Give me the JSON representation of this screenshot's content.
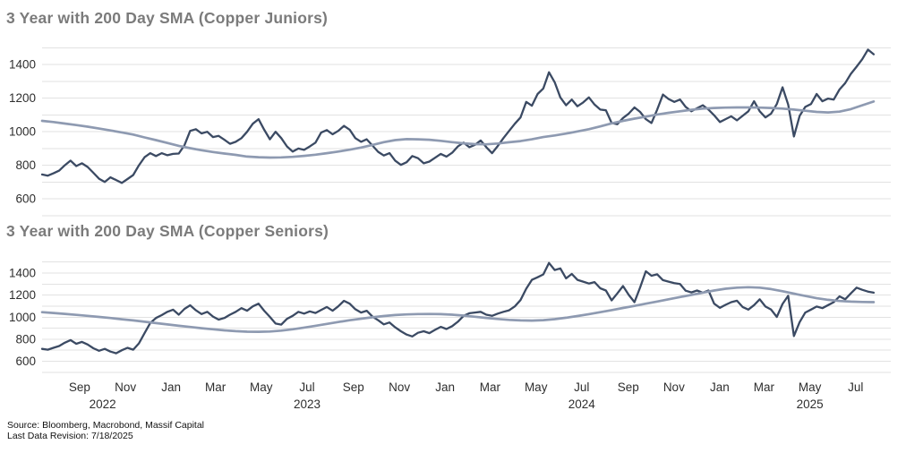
{
  "page": {
    "source_line1": "Source: Bloomberg, Macrobond, Massif Capital",
    "source_line2": "Last Data Revision: 7/18/2025"
  },
  "palette": {
    "title": "#7b7b7b",
    "axis_label": "#2e2e2e",
    "gridline": "#e2e2e2",
    "index_line": "#3b4a63",
    "sma_line": "#8e9ab1"
  },
  "x_axis": {
    "t_min": 0,
    "t_max": 37.15,
    "month_ticks": [
      {
        "label": "Sep",
        "t": 1.64
      },
      {
        "label": "Nov",
        "t": 3.65
      },
      {
        "label": "Jan",
        "t": 5.65
      },
      {
        "label": "Mar",
        "t": 7.59
      },
      {
        "label": "May",
        "t": 9.59
      },
      {
        "label": "Jul",
        "t": 11.6
      },
      {
        "label": "Sep",
        "t": 13.63
      },
      {
        "label": "Nov",
        "t": 15.64
      },
      {
        "label": "Jan",
        "t": 17.64
      },
      {
        "label": "Mar",
        "t": 19.61
      },
      {
        "label": "May",
        "t": 21.62
      },
      {
        "label": "Jul",
        "t": 23.62
      },
      {
        "label": "Sep",
        "t": 25.66
      },
      {
        "label": "Nov",
        "t": 27.66
      },
      {
        "label": "Jan",
        "t": 29.66
      },
      {
        "label": "Mar",
        "t": 31.6
      },
      {
        "label": "May",
        "t": 33.61
      },
      {
        "label": "Jul",
        "t": 35.61
      }
    ],
    "year_ticks": [
      {
        "label": "2022",
        "t": 2.65
      },
      {
        "label": "2023",
        "t": 11.6
      },
      {
        "label": "2024",
        "t": 23.62
      },
      {
        "label": "2025",
        "t": 33.61
      }
    ]
  },
  "chart_data": [
    {
      "type": "line",
      "title": "3 Year with 200 Day SMA (Copper Juniors)",
      "ylim": [
        500,
        1500
      ],
      "yticks": [
        600,
        800,
        1000,
        1200,
        1400
      ],
      "grid_step": 100,
      "x_range_note": "t = months since mid-July 2022; last data 7/18/2025",
      "series": [
        {
          "name": "copper-juniors-index",
          "color_key": "index_line",
          "t_start": 0,
          "t_end": 36.4,
          "values": [
            745,
            738,
            752,
            768,
            800,
            828,
            795,
            812,
            790,
            755,
            720,
            700,
            728,
            712,
            695,
            718,
            742,
            800,
            848,
            872,
            855,
            872,
            860,
            868,
            870,
            920,
            1005,
            1015,
            990,
            1000,
            968,
            975,
            952,
            928,
            940,
            962,
            1000,
            1048,
            1075,
            1012,
            955,
            1000,
            962,
            912,
            882,
            900,
            892,
            912,
            935,
            995,
            1010,
            985,
            1005,
            1035,
            1012,
            962,
            940,
            955,
            918,
            880,
            858,
            872,
            828,
            802,
            818,
            855,
            842,
            812,
            822,
            845,
            868,
            852,
            875,
            912,
            935,
            908,
            922,
            948,
            908,
            872,
            915,
            962,
            1005,
            1048,
            1085,
            1178,
            1155,
            1225,
            1258,
            1355,
            1295,
            1205,
            1158,
            1192,
            1152,
            1175,
            1205,
            1162,
            1132,
            1128,
            1052,
            1045,
            1082,
            1108,
            1145,
            1118,
            1075,
            1052,
            1132,
            1222,
            1195,
            1178,
            1192,
            1148,
            1122,
            1140,
            1158,
            1132,
            1098,
            1058,
            1075,
            1092,
            1068,
            1095,
            1122,
            1182,
            1122,
            1085,
            1108,
            1165,
            1265,
            1162,
            972,
            1095,
            1148,
            1165,
            1225,
            1182,
            1198,
            1192,
            1252,
            1290,
            1345,
            1388,
            1432,
            1490,
            1462
          ]
        },
        {
          "name": "copper-juniors-200d-sma",
          "color_key": "sma_line",
          "t_start": 0,
          "t_end": 36.4,
          "values": [
            1065,
            1058,
            1049,
            1040,
            1030,
            1019,
            1008,
            996,
            983,
            966,
            950,
            933,
            916,
            902,
            890,
            879,
            870,
            862,
            852,
            848,
            846,
            847,
            850,
            856,
            863,
            872,
            882,
            893,
            906,
            921,
            938,
            950,
            956,
            955,
            952,
            946,
            938,
            931,
            926,
            925,
            930,
            937,
            944,
            955,
            968,
            978,
            989,
            1002,
            1015,
            1032,
            1050,
            1065,
            1078,
            1090,
            1103,
            1113,
            1122,
            1131,
            1138,
            1142,
            1144,
            1145,
            1145,
            1144,
            1142,
            1138,
            1132,
            1125,
            1118,
            1115,
            1120,
            1135,
            1158,
            1180
          ]
        }
      ]
    },
    {
      "type": "line",
      "title": "3 Year with 200 Day SMA (Copper Seniors)",
      "ylim": [
        500,
        1500
      ],
      "yticks": [
        600,
        800,
        1000,
        1200,
        1400
      ],
      "grid_step": 100,
      "x_range_note": "t = months since mid-July 2022; last data 7/18/2025",
      "series": [
        {
          "name": "copper-seniors-index",
          "color_key": "index_line",
          "t_start": 0,
          "t_end": 36.4,
          "values": [
            712,
            705,
            722,
            738,
            768,
            792,
            758,
            775,
            752,
            718,
            695,
            712,
            688,
            672,
            700,
            722,
            705,
            762,
            855,
            948,
            992,
            1018,
            1048,
            1068,
            1022,
            1075,
            1108,
            1062,
            1028,
            1048,
            1005,
            978,
            992,
            1022,
            1048,
            1082,
            1058,
            1098,
            1122,
            1058,
            1002,
            942,
            932,
            985,
            1012,
            1048,
            1032,
            1052,
            1038,
            1065,
            1092,
            1058,
            1098,
            1148,
            1122,
            1072,
            1042,
            1058,
            1005,
            972,
            935,
            952,
            908,
            872,
            842,
            825,
            858,
            872,
            855,
            885,
            912,
            892,
            918,
            958,
            1012,
            1035,
            1042,
            1048,
            1022,
            1012,
            1032,
            1048,
            1062,
            1098,
            1155,
            1258,
            1338,
            1362,
            1388,
            1492,
            1428,
            1442,
            1352,
            1392,
            1338,
            1322,
            1305,
            1318,
            1262,
            1242,
            1152,
            1216,
            1282,
            1202,
            1136,
            1269,
            1416,
            1376,
            1389,
            1336,
            1322,
            1309,
            1300,
            1240,
            1225,
            1242,
            1222,
            1242,
            1122,
            1085,
            1112,
            1136,
            1149,
            1092,
            1069,
            1109,
            1162,
            1096,
            1069,
            1002,
            1120,
            1194,
            829,
            955,
            1042,
            1069,
            1096,
            1082,
            1109,
            1136,
            1189,
            1162,
            1216,
            1268,
            1248,
            1232,
            1222
          ]
        },
        {
          "name": "copper-seniors-200d-sma",
          "color_key": "sma_line",
          "t_start": 0,
          "t_end": 36.4,
          "values": [
            1045,
            1038,
            1030,
            1021,
            1012,
            1002,
            992,
            981,
            970,
            958,
            946,
            934,
            922,
            911,
            900,
            890,
            880,
            873,
            868,
            867,
            870,
            878,
            890,
            905,
            922,
            939,
            956,
            972,
            986,
            999,
            1010,
            1019,
            1025,
            1028,
            1029,
            1027,
            1022,
            1014,
            1004,
            993,
            983,
            975,
            970,
            969,
            973,
            982,
            995,
            1010,
            1027,
            1045,
            1064,
            1083,
            1102,
            1122,
            1142,
            1162,
            1182,
            1202,
            1222,
            1242,
            1258,
            1268,
            1272,
            1268,
            1255,
            1235,
            1213,
            1192,
            1172,
            1157,
            1147,
            1141,
            1138,
            1136
          ]
        }
      ]
    }
  ]
}
